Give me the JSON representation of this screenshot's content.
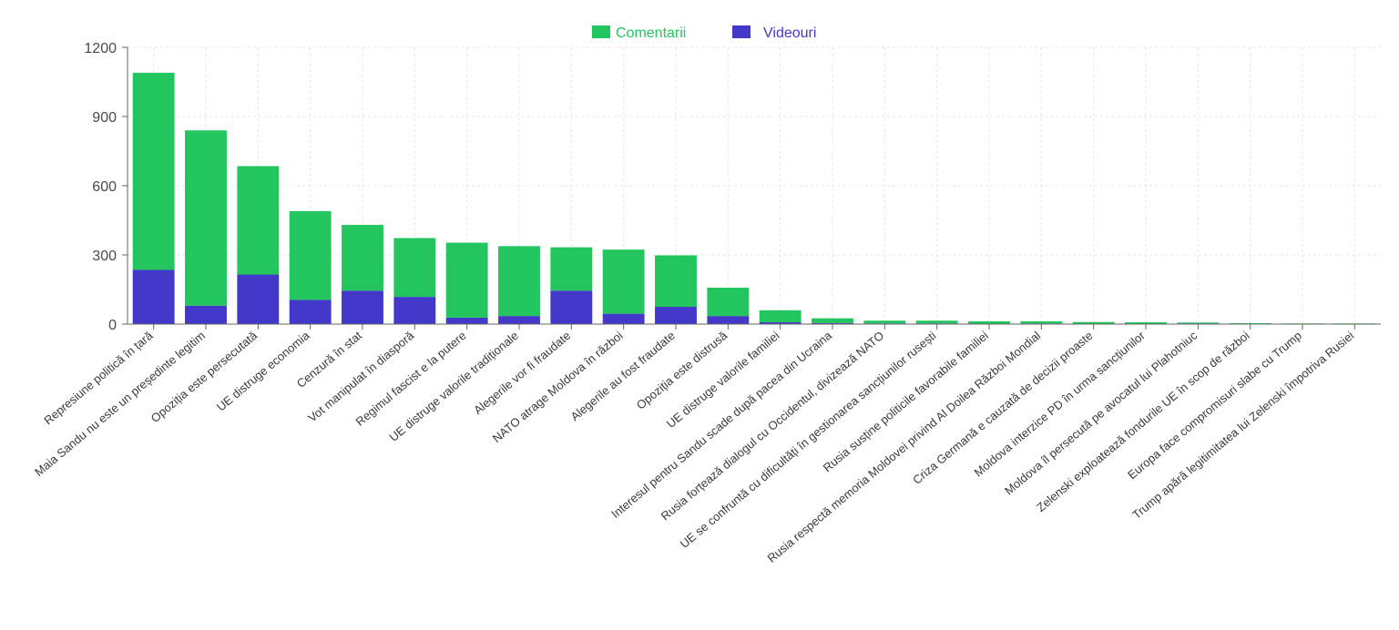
{
  "colors": {
    "comentarii": "#22c55e",
    "videouri": "#4338ca",
    "grid": "#e6e6e6",
    "axis": "#666666"
  },
  "legend": {
    "placement": "top-center"
  },
  "chart_data": {
    "type": "bar",
    "stacked": true,
    "grid": true,
    "ylim": [
      0,
      1200
    ],
    "yticks": [
      0,
      300,
      600,
      900,
      1200
    ],
    "categories": [
      "Represiune politică în țară",
      "Maia Sandu nu este un președinte legitim",
      "Opoziția este persecutată",
      "UE distruge economia",
      "Cenzură în stat",
      "Vot manipulat în diasporă",
      "Regimul fascist e la putere",
      "UE distruge valorile tradiționale",
      "Alegerile vor fi fraudate",
      "NATO atrage Moldova în război",
      "Alegerile au fost fraudate",
      "Opoziția este distrusă",
      "UE distruge valorile familiei",
      "Interesul pentru Sandu scade după pacea din Ucraina",
      "Rusia forțează dialogul cu Occidentul, divizează NATO",
      "UE se confruntă cu dificultăți în gestionarea sancțiunilor rusești",
      "Rusia susține politicile favorabile familiei",
      "Rusia respectă memoria Moldovei privind Al Doilea Război Mondial",
      "Criza Germană e cauzată de decizii proaste",
      "Moldova interzice PD în urma sancțiunilor",
      "Moldova îl persecută pe avocatul lui Plahotniuc",
      "Zelenski exploatează fondurile UE în scop de război",
      "Europa face compromisuri slabe cu Trump",
      "Trump apără legitimitatea lui Zelenski împotriva Rusiei"
    ],
    "series": [
      {
        "name": "Videouri",
        "values": [
          235,
          80,
          215,
          105,
          145,
          118,
          28,
          35,
          145,
          45,
          75,
          35,
          8,
          5,
          3,
          3,
          2,
          3,
          2,
          2,
          3,
          1,
          1,
          1
        ]
      },
      {
        "name": "Comentarii",
        "values": [
          855,
          760,
          470,
          385,
          285,
          255,
          325,
          303,
          188,
          278,
          223,
          123,
          52,
          20,
          12,
          12,
          10,
          9,
          7,
          6,
          4,
          3,
          2,
          2
        ]
      }
    ]
  }
}
